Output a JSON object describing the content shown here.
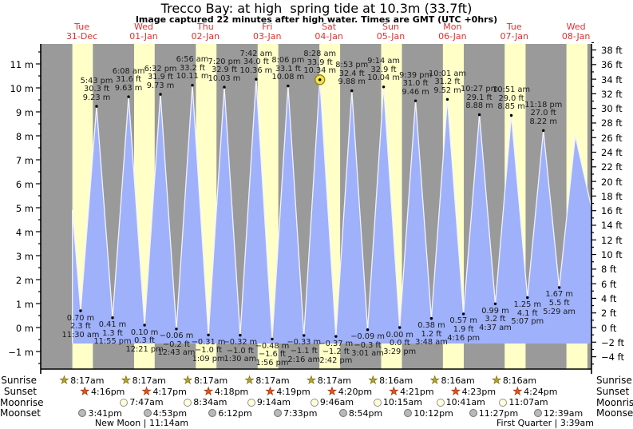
{
  "title": "Trecco Bay: at high  spring tide at 10.3m (33.7ft)",
  "subtitle": "Image captured 22 minutes after high water. Times are GMT (UTC +0hrs)",
  "colors": {
    "night_band": "#9a9a9a",
    "daylight_band": "#ffffc8",
    "tide_fill": "#9fb1fb",
    "tide_outline": "#f2f2ff",
    "day_label": "#e03030",
    "current_marker_fill": "#f2e24a",
    "current_marker_stroke": "#8f8500",
    "sunrise_star": "#b5a41f",
    "sunset_star": "#e0571f",
    "moonrise_fill": "#ffffd8",
    "moonset_fill": "#b9b9b9"
  },
  "chart_data": {
    "type": "area",
    "title": "Trecco Bay: at high  spring tide at 10.3m (33.7ft)",
    "ylabel_left_units": "m",
    "ylabel_right_units": "ft",
    "ylim_m": [
      -1.75,
      11.8
    ],
    "x_domain_hours_from_31dec_midnight": [
      -4,
      210
    ],
    "left_ticks_m": [
      -1,
      0,
      1,
      2,
      3,
      4,
      5,
      6,
      7,
      8,
      9,
      10,
      11
    ],
    "right_ticks_ft": [
      -4,
      -2,
      0,
      2,
      4,
      6,
      8,
      10,
      12,
      14,
      16,
      18,
      20,
      22,
      24,
      26,
      28,
      30,
      32,
      34,
      36,
      38
    ],
    "grid": false,
    "days": [
      {
        "weekday": "Tue",
        "date": "31-Dec"
      },
      {
        "weekday": "Wed",
        "date": "01-Jan"
      },
      {
        "weekday": "Thu",
        "date": "02-Jan"
      },
      {
        "weekday": "Fri",
        "date": "03-Jan"
      },
      {
        "weekday": "Sat",
        "date": "04-Jan"
      },
      {
        "weekday": "Sun",
        "date": "05-Jan"
      },
      {
        "weekday": "Mon",
        "date": "06-Jan"
      },
      {
        "weekday": "Tue",
        "date": "07-Jan"
      },
      {
        "weekday": "Wed",
        "date": "08-Jan"
      }
    ],
    "curve_start": {
      "t": 8.3,
      "mv": 4.9
    },
    "curve_end_high": {
      "t": 203.7,
      "mv": 8.0
    },
    "curve_end": {
      "t": 210.0,
      "mv": 5.0
    },
    "tide_events": [
      {
        "kind": "low",
        "t": 11.5,
        "mv": 0.7,
        "time": "11:30 am",
        "ft": "2.3 ft",
        "m": "0.70 m"
      },
      {
        "kind": "high",
        "t": 17.717,
        "mv": 9.23,
        "time": "5:43 pm",
        "ft": "30.3 ft",
        "m": "9.23 m"
      },
      {
        "kind": "low",
        "t": 23.917,
        "mv": 0.41,
        "time": "11:55 pm",
        "ft": "1.3 ft",
        "m": "0.41 m"
      },
      {
        "kind": "high",
        "t": 30.133,
        "mv": 9.63,
        "time": "6:08 am",
        "ft": "31.6 ft",
        "m": "9.63 m"
      },
      {
        "kind": "low",
        "t": 36.35,
        "mv": 0.1,
        "time": "12:21 pm",
        "ft": "0.3 ft",
        "m": "0.10 m"
      },
      {
        "kind": "high",
        "t": 42.533,
        "mv": 9.73,
        "time": "6:32 pm",
        "ft": "31.9 ft",
        "m": "9.73 m"
      },
      {
        "kind": "low",
        "t": 48.717,
        "mv": -0.06,
        "time": "12:43 am",
        "ft": "−0.2 ft",
        "m": "−0.06 m"
      },
      {
        "kind": "high",
        "t": 54.933,
        "mv": 10.11,
        "time": "6:56 am",
        "ft": "33.2 ft",
        "m": "10.11 m"
      },
      {
        "kind": "low",
        "t": 61.15,
        "mv": -0.31,
        "time": "1:09 pm",
        "ft": "−1.0 ft",
        "m": "−0.31 m"
      },
      {
        "kind": "high",
        "t": 67.333,
        "mv": 10.03,
        "time": "7:20 pm",
        "ft": "32.9 ft",
        "m": "10.03 m"
      },
      {
        "kind": "low",
        "t": 73.5,
        "mv": -0.32,
        "time": "1:30 am",
        "ft": "−1.0 ft",
        "m": "−0.32 m"
      },
      {
        "kind": "high",
        "t": 79.7,
        "mv": 10.36,
        "time": "7:42 am",
        "ft": "34.0 ft",
        "m": "10.36 m"
      },
      {
        "kind": "low",
        "t": 85.933,
        "mv": -0.48,
        "time": "1:56 pm",
        "ft": "−1.6 ft",
        "m": "−0.48 m"
      },
      {
        "kind": "high",
        "t": 92.1,
        "mv": 10.08,
        "time": "8:06 pm",
        "ft": "33.1 ft",
        "m": "10.08 m"
      },
      {
        "kind": "low",
        "t": 98.267,
        "mv": -0.33,
        "time": "2:16 am",
        "ft": "−1.1 ft",
        "m": "−0.33 m"
      },
      {
        "kind": "high",
        "t": 104.467,
        "mv": 10.34,
        "time": "8:28 am",
        "ft": "33.9 ft",
        "m": "10.34 m",
        "current": true
      },
      {
        "kind": "low",
        "t": 110.7,
        "mv": -0.37,
        "time": "2:42 pm",
        "ft": "−1.2 ft",
        "m": "−0.37 m"
      },
      {
        "kind": "high",
        "t": 116.883,
        "mv": 9.88,
        "time": "8:53 pm",
        "ft": "32.4 ft",
        "m": "9.88 m"
      },
      {
        "kind": "low",
        "t": 123.017,
        "mv": -0.09,
        "time": "3:01 am",
        "ft": "−0.3 ft",
        "m": "−0.09 m"
      },
      {
        "kind": "high",
        "t": 129.233,
        "mv": 10.04,
        "time": "9:14 am",
        "ft": "32.9 ft",
        "m": "10.04 m"
      },
      {
        "kind": "low",
        "t": 135.483,
        "mv": 0.0,
        "time": "3:29 pm",
        "ft": "0.0 ft",
        "m": "0.00 m"
      },
      {
        "kind": "high",
        "t": 141.65,
        "mv": 9.46,
        "time": "9:39 pm",
        "ft": "31.0 ft",
        "m": "9.46 m"
      },
      {
        "kind": "low",
        "t": 147.8,
        "mv": 0.38,
        "time": "3:48 am",
        "ft": "1.2 ft",
        "m": "0.38 m"
      },
      {
        "kind": "high",
        "t": 154.017,
        "mv": 9.52,
        "time": "10:01 am",
        "ft": "31.2 ft",
        "m": "9.52 m"
      },
      {
        "kind": "low",
        "t": 160.267,
        "mv": 0.57,
        "time": "4:16 pm",
        "ft": "1.9 ft",
        "m": "0.57 m"
      },
      {
        "kind": "high",
        "t": 166.45,
        "mv": 8.88,
        "time": "10:27 pm",
        "ft": "29.1 ft",
        "m": "8.88 m"
      },
      {
        "kind": "low",
        "t": 172.617,
        "mv": 0.99,
        "time": "4:37 am",
        "ft": "3.2 ft",
        "m": "0.99 m"
      },
      {
        "kind": "high",
        "t": 178.85,
        "mv": 8.85,
        "time": "10:51 am",
        "ft": "29.0 ft",
        "m": "8.85 m"
      },
      {
        "kind": "low",
        "t": 185.117,
        "mv": 1.25,
        "time": "5:07 pm",
        "ft": "4.1 ft",
        "m": "1.25 m"
      },
      {
        "kind": "high",
        "t": 191.3,
        "mv": 8.22,
        "time": "11:18 pm",
        "ft": "27.0 ft",
        "m": "8.22 m"
      },
      {
        "kind": "low",
        "t": 197.483,
        "mv": 1.67,
        "time": "5:29 am",
        "ft": "5.5 ft",
        "m": "1.67 m"
      }
    ]
  },
  "astro": {
    "row_labels": [
      "Sunrise",
      "Sunset",
      "Moonrise",
      "Moonset"
    ],
    "sunrise": [
      {
        "t": 8.283,
        "time": "8:17am"
      },
      {
        "t": 32.283,
        "time": "8:17am"
      },
      {
        "t": 56.283,
        "time": "8:17am"
      },
      {
        "t": 80.283,
        "time": "8:17am"
      },
      {
        "t": 104.283,
        "time": "8:17am"
      },
      {
        "t": 128.267,
        "time": "8:16am"
      },
      {
        "t": 152.267,
        "time": "8:16am"
      },
      {
        "t": 176.267,
        "time": "8:16am"
      }
    ],
    "sunset": [
      {
        "t": 16.267,
        "time": "4:16pm"
      },
      {
        "t": 40.283,
        "time": "4:17pm"
      },
      {
        "t": 64.3,
        "time": "4:18pm"
      },
      {
        "t": 88.317,
        "time": "4:19pm"
      },
      {
        "t": 112.333,
        "time": "4:20pm"
      },
      {
        "t": 136.35,
        "time": "4:21pm"
      },
      {
        "t": 160.383,
        "time": "4:23pm"
      },
      {
        "t": 184.4,
        "time": "4:24pm"
      }
    ],
    "moonrise": [
      {
        "t": 31.783,
        "time": "7:47am"
      },
      {
        "t": 56.567,
        "time": "8:34am"
      },
      {
        "t": 81.233,
        "time": "9:14am"
      },
      {
        "t": 105.767,
        "time": "9:46am"
      },
      {
        "t": 130.25,
        "time": "10:15am"
      },
      {
        "t": 154.683,
        "time": "10:41am"
      },
      {
        "t": 179.117,
        "time": "11:07am"
      }
    ],
    "moonset": [
      {
        "t": 15.683,
        "time": "3:41pm"
      },
      {
        "t": 40.883,
        "time": "4:53pm"
      },
      {
        "t": 66.2,
        "time": "6:12pm"
      },
      {
        "t": 91.55,
        "time": "7:33pm"
      },
      {
        "t": 116.9,
        "time": "8:54pm"
      },
      {
        "t": 142.2,
        "time": "10:12pm"
      },
      {
        "t": 167.45,
        "time": "11:27pm"
      },
      {
        "t": 192.65,
        "time": "12:39am"
      }
    ],
    "moon_phases": [
      {
        "t": 35.233,
        "label": "New Moon | 11:14am"
      },
      {
        "t": 195.65,
        "label": "First Quarter | 3:39am"
      }
    ]
  }
}
